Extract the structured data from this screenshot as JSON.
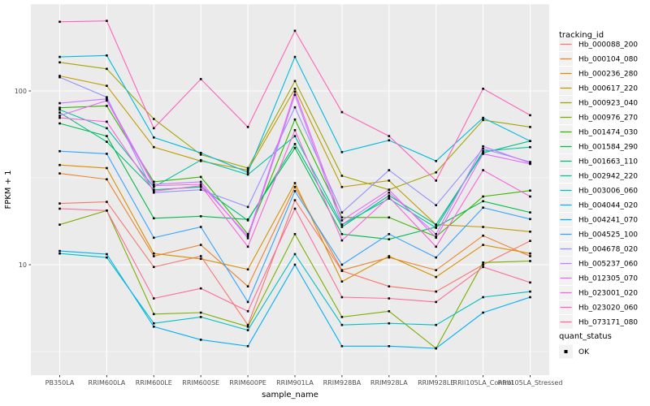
{
  "figure": {
    "background": "#FFFFFF",
    "panel_background": "#EBEBEB",
    "grid_color": "#FFFFFF",
    "tick_label_color": "#4D4D4D",
    "point_color": "#000000"
  },
  "axes": {
    "x_title": "sample_name",
    "y_title": "FPKM + 1",
    "y_tick_labels": [
      "100",
      "10"
    ],
    "y_tick_values": [
      100,
      10
    ],
    "y_minor_values": [
      316.2,
      31.62,
      3.162
    ]
  },
  "legend": {
    "tracking_title": "tracking_id",
    "quant_title": "quant_status",
    "quant_items": [
      {
        "label": "OK",
        "marker": "black-square"
      }
    ]
  },
  "chart_data": {
    "type": "line",
    "title": "",
    "xlabel": "sample_name",
    "ylabel": "FPKM + 1",
    "y_scale": "log10",
    "ylim": [
      2.3,
      320
    ],
    "grid": true,
    "legend_position": "right",
    "point_marker": "black-square",
    "categories": [
      "PB350LA",
      "RRIM600LA",
      "RRIM600LE",
      "RRIM600SE",
      "RRIM600PE",
      "RRIM901LA",
      "RRIM928BA",
      "RRIM928LA",
      "RRIM928LE",
      "RRII105LA_Control",
      "RRII105LA_Stressed"
    ],
    "series": [
      {
        "name": "Hb_000088_200",
        "color": "#F8766D",
        "values": [
          22.5,
          23,
          9.7,
          11.2,
          4.5,
          23.5,
          9.2,
          7.5,
          7.0,
          10.0,
          13.7
        ]
      },
      {
        "name": "Hb_000104_080",
        "color": "#EA8331",
        "values": [
          33.5,
          31,
          11.2,
          13,
          7.5,
          28,
          9.3,
          11,
          9.3,
          14.7,
          11.2
        ]
      },
      {
        "name": "Hb_000236_280",
        "color": "#D89000",
        "values": [
          37.5,
          36,
          11.6,
          10.8,
          9.4,
          29.5,
          8.0,
          11.2,
          8.5,
          13,
          11.6
        ]
      },
      {
        "name": "Hb_000617_220",
        "color": "#C09B00",
        "values": [
          122,
          107,
          47.5,
          39.5,
          35,
          103,
          28,
          30.5,
          17,
          16.5,
          15.5
        ]
      },
      {
        "name": "Hb_000923_040",
        "color": "#A3A500",
        "values": [
          146,
          134,
          69,
          43,
          36,
          114,
          32.5,
          27,
          34,
          68,
          62
        ]
      },
      {
        "name": "Hb_000976_270",
        "color": "#7CAE00",
        "values": [
          17,
          20.5,
          5.2,
          5.3,
          4.4,
          15,
          5.0,
          5.4,
          3.3,
          10.3,
          10.5
        ]
      },
      {
        "name": "Hb_001474_030",
        "color": "#39B600",
        "values": [
          80,
          82,
          30,
          32,
          15,
          68.5,
          18.7,
          18.7,
          14.5,
          24.7,
          26.7
        ]
      },
      {
        "name": "Hb_001584_290",
        "color": "#00BB4E",
        "values": [
          65,
          55,
          18.5,
          19,
          18.2,
          47,
          15,
          14,
          16.5,
          23.2,
          20
        ]
      },
      {
        "name": "Hb_001663_110",
        "color": "#00BF7D",
        "values": [
          75,
          51,
          27,
          28,
          18,
          49.5,
          16.5,
          25,
          17,
          44,
          51.5
        ]
      },
      {
        "name": "Hb_002942_220",
        "color": "#00C1A3",
        "values": [
          78,
          61,
          28,
          40,
          33,
          55,
          17,
          24,
          16.3,
          45,
          47.5
        ]
      },
      {
        "name": "Hb_003006_060",
        "color": "#00BFC4",
        "values": [
          11.6,
          11,
          4.6,
          5.0,
          4.2,
          11.5,
          4.5,
          4.6,
          4.5,
          6.5,
          7.0
        ]
      },
      {
        "name": "Hb_004044_020",
        "color": "#00BAE0",
        "values": [
          157,
          160,
          54,
          44,
          34,
          157,
          44.5,
          52,
          39.5,
          70,
          51.5
        ]
      },
      {
        "name": "Hb_004241_070",
        "color": "#00B0F6",
        "values": [
          12,
          11.5,
          4.4,
          3.7,
          3.4,
          10,
          3.4,
          3.4,
          3.3,
          5.3,
          6.5
        ]
      },
      {
        "name": "Hb_004525_100",
        "color": "#35A2FF",
        "values": [
          45,
          43.5,
          14.3,
          16.5,
          6.1,
          26.5,
          10,
          15,
          11,
          21.3,
          18.3
        ]
      },
      {
        "name": "Hb_004678_020",
        "color": "#9590FF",
        "values": [
          120,
          92,
          26,
          27,
          21.5,
          80.5,
          20,
          35,
          22,
          46.5,
          39
        ]
      },
      {
        "name": "Hb_005237_060",
        "color": "#C77CFF",
        "values": [
          85,
          90,
          29,
          30,
          14.2,
          95,
          17,
          26,
          15,
          48,
          38.5
        ]
      },
      {
        "name": "Hb_012305_070",
        "color": "#E76BF3",
        "values": [
          72,
          88,
          28.5,
          29,
          14.6,
          99,
          18,
          27,
          14.3,
          43.5,
          38
        ]
      },
      {
        "name": "Hb_023001_020",
        "color": "#FA62DB",
        "values": [
          70,
          66.5,
          26.5,
          28.5,
          12.7,
          59.5,
          13.8,
          24.5,
          12.7,
          35,
          24.7
        ]
      },
      {
        "name": "Hb_023020_060",
        "color": "#FF62BC",
        "values": [
          250,
          253,
          61,
          117,
          62,
          222,
          75.5,
          55,
          30.5,
          103,
          72.5
        ]
      },
      {
        "name": "Hb_073171_080",
        "color": "#FF6A98",
        "values": [
          21,
          20.5,
          6.4,
          7.3,
          5.4,
          21,
          6.5,
          6.4,
          6.1,
          9.7,
          7.9
        ]
      }
    ]
  }
}
